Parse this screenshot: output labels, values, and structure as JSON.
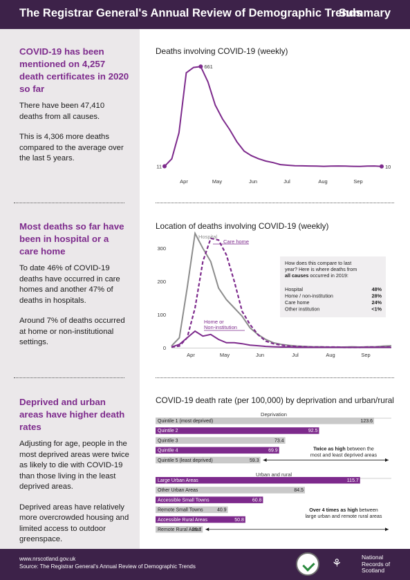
{
  "header": {
    "title": "The Registrar General's Annual Review of Demographic Trends",
    "summary": "Summary"
  },
  "sections": [
    {
      "heading": "COVID-19 has been mentioned on 4,257 death certificates in 2020 so far",
      "paragraphs": [
        "There have been 47,410 deaths from all causes.",
        "This is 4,306 more deaths compared to the average over the last 5 years."
      ]
    },
    {
      "heading": "Most deaths so far have been in hospital or a care home",
      "paragraphs": [
        "To date 46% of COVID-19 deaths have occurred in care homes and another 47% of deaths in hospitals.",
        "Around 7% of deaths occurred at home or non-institutional settings."
      ]
    },
    {
      "heading": "Deprived and urban areas have higher death rates",
      "paragraphs": [
        "Adjusting for age, people in the most deprived areas were twice as likely to die with COVID-19 than those living in the least deprived areas.",
        "Deprived areas have relatively more overcrowded housing and limited access to outdoor greenspace."
      ]
    }
  ],
  "chart_data": [
    {
      "type": "line",
      "title": "Deaths involving COVID-19 (weekly)",
      "x_ticks": [
        "Apr",
        "May",
        "Jun",
        "Jul",
        "Aug",
        "Sep"
      ],
      "series": [
        {
          "color": "#7d2a8c",
          "values": [
            11,
            60,
            230,
            620,
            655,
            661,
            560,
            410,
            320,
            250,
            170,
            110,
            80,
            60,
            45,
            35,
            22,
            18,
            15,
            14,
            13,
            12,
            11,
            12,
            13,
            12,
            11,
            10,
            12,
            13,
            10
          ]
        }
      ],
      "labels": {
        "start": "11",
        "peak": "661",
        "end": "10"
      },
      "ylim": [
        0,
        680
      ]
    },
    {
      "type": "line",
      "title": "Location of deaths involving COVID-19 (weekly)",
      "y_ticks": [
        "0",
        "100",
        "200",
        "300"
      ],
      "x_ticks": [
        "Apr",
        "May",
        "Jun",
        "Jul",
        "Aug",
        "Sep"
      ],
      "ylim": [
        0,
        340
      ],
      "series": [
        {
          "name": "Hospital",
          "color": "#8c8c8c",
          "dash": false,
          "values": [
            5,
            30,
            180,
            345,
            300,
            260,
            180,
            145,
            120,
            95,
            60,
            40,
            25,
            15,
            10,
            7,
            5,
            4,
            3,
            3,
            2,
            2,
            2,
            3,
            2,
            3,
            3,
            5,
            6
          ]
        },
        {
          "name": "Care home",
          "color": "#7d2a8c",
          "dash": true,
          "values": [
            2,
            5,
            30,
            120,
            260,
            330,
            325,
            280,
            200,
            110,
            70,
            40,
            20,
            12,
            8,
            5,
            4,
            3,
            2,
            2,
            2,
            2,
            1,
            1,
            1,
            2,
            2,
            2,
            2
          ]
        },
        {
          "name": "Home or Non-institution",
          "color": "#7d2a8c",
          "dash": false,
          "values": [
            2,
            10,
            30,
            50,
            35,
            40,
            25,
            15,
            15,
            12,
            8,
            6,
            4,
            3,
            2,
            2,
            1,
            1,
            1,
            1,
            1,
            1,
            1,
            1,
            1,
            1,
            1,
            1,
            1
          ]
        }
      ],
      "inset": {
        "intro": "How does this compare to last year? Here is where deaths from",
        "intro_bold": "all causes",
        "intro_end": "occurred in 2019:",
        "rows": [
          {
            "label": "Hospital",
            "value": "48%"
          },
          {
            "label": "Home / non-institution",
            "value": "28%"
          },
          {
            "label": "Care home",
            "value": "24%"
          },
          {
            "label": "Other institution",
            "value": "<1%"
          }
        ]
      }
    },
    {
      "type": "bar",
      "title": "COVID-19 death rate (per 100,000) by deprivation and urban/rural",
      "max": 123.6,
      "groups": [
        {
          "name": "Deprivation",
          "bars": [
            {
              "label": "Quintile 1 (most deprived)",
              "value": 123.6,
              "value_label": "123.6",
              "highlight": false
            },
            {
              "label": "Quintile 2",
              "value": 92.5,
              "value_label": "92.5",
              "highlight": true
            },
            {
              "label": "Quintile 3",
              "value": 73.4,
              "value_label": "73.4",
              "highlight": false
            },
            {
              "label": "Quintile 4",
              "value": 69.9,
              "value_label": "69.9",
              "highlight": true
            },
            {
              "label": "Quintile 5 (least deprived)",
              "value": 59.3,
              "value_label": "59.3",
              "highlight": false
            }
          ],
          "note_bold": "Twice as high",
          "note_rest": " between the",
          "note_line2": "most and least deprived areas"
        },
        {
          "name": "Urban and rural",
          "bars": [
            {
              "label": "Large Urban Areas",
              "value": 115.7,
              "value_label": "115.7",
              "highlight": true
            },
            {
              "label": "Other Urban Areas",
              "value": 84.5,
              "value_label": "84.5",
              "highlight": false
            },
            {
              "label": "Accessible Small Towns",
              "value": 60.8,
              "value_label": "60.8",
              "highlight": true
            },
            {
              "label": "Remote Small Towns",
              "value": 40.9,
              "value_label": "40.9",
              "highlight": false
            },
            {
              "label": "Accessible Rural Areas",
              "value": 50.8,
              "value_label": "50.8",
              "highlight": true
            },
            {
              "label": "Remote Rural Areas",
              "value": 26.7,
              "value_label": "26.7",
              "highlight": false
            }
          ],
          "note_bold": "Over 4 times as high",
          "note_rest": " between",
          "note_line2": "large urban and remote rural areas"
        }
      ]
    }
  ],
  "footer": {
    "url": "www.nrscotland.gov.uk",
    "source": "Source: The Registrar General's Annual Review of Demographic Trends",
    "logo_text": [
      "National",
      "Records of",
      "Scotland"
    ]
  },
  "colors": {
    "header": "#3d2249",
    "accent": "#7d2a8c",
    "grey": "#8c8c8c",
    "sidebar": "#ebe8ea"
  }
}
